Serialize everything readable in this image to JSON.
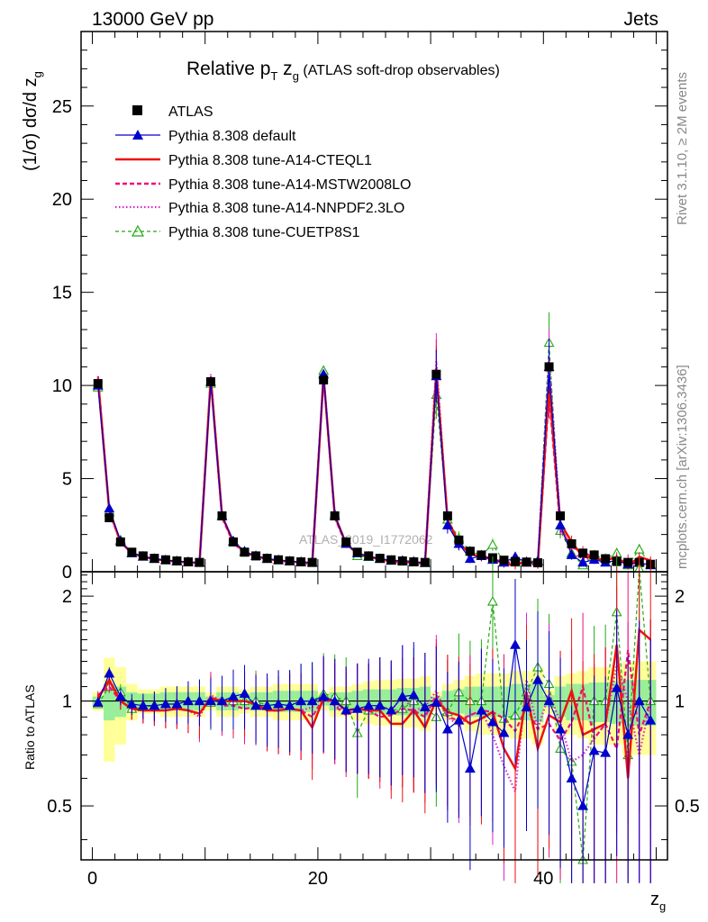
{
  "header": {
    "energy": "13000 GeV pp",
    "process": "Jets"
  },
  "side_text": {
    "rivet": "Rivet 3.1.10, ≥ 2M events",
    "site": "mcplots.cern.ch [arXiv:1306.3436]"
  },
  "watermark": "ATLAS_2019_I1772062",
  "title": {
    "pre": "Relative p",
    "sub1": "T",
    "mid": " z",
    "sub2": "g",
    "post": " (ATLAS soft-drop observables)"
  },
  "ylabel_main": {
    "pre": "(1/σ) dσ/d z",
    "sub": "g"
  },
  "ylabel_ratio": "Ratio to ATLAS",
  "xlabel": {
    "pre": "z",
    "sub": "g"
  },
  "colors": {
    "atlas": "#000000",
    "default": "#0000cc",
    "cteql1": "#ee1111",
    "mstw": "#ee1177",
    "nnpdf": "#dd22cc",
    "cuetp8s1": "#22aa11",
    "band_yellow": "#ffff99",
    "band_green": "#99ee99"
  },
  "chart_data": [
    {
      "type": "line",
      "panel": "main",
      "xlim": [
        -1,
        51
      ],
      "ylim": [
        0,
        29
      ],
      "xticks": [
        0,
        20,
        40
      ],
      "yticks": [
        0,
        5,
        10,
        15,
        20,
        25
      ],
      "x": [
        0.5,
        1.5,
        2.5,
        3.5,
        4.5,
        5.5,
        6.5,
        7.5,
        8.5,
        9.5,
        10.5,
        11.5,
        12.5,
        13.5,
        14.5,
        15.5,
        16.5,
        17.5,
        18.5,
        19.5,
        20.5,
        21.5,
        22.5,
        23.5,
        24.5,
        25.5,
        26.5,
        27.5,
        28.5,
        29.5,
        30.5,
        31.5,
        32.5,
        33.5,
        34.5,
        35.5,
        36.5,
        37.5,
        38.5,
        39.5,
        40.5,
        41.5,
        42.5,
        43.5,
        44.5,
        45.5,
        46.5,
        47.5,
        48.5,
        49.5
      ],
      "atlas": [
        10.1,
        2.9,
        1.6,
        1.05,
        0.85,
        0.72,
        0.64,
        0.58,
        0.53,
        0.5,
        10.2,
        3.0,
        1.6,
        1.05,
        0.85,
        0.72,
        0.64,
        0.58,
        0.53,
        0.5,
        10.3,
        3.0,
        1.6,
        1.05,
        0.85,
        0.72,
        0.64,
        0.58,
        0.53,
        0.5,
        10.6,
        3.0,
        1.7,
        1.1,
        0.9,
        0.75,
        0.62,
        0.55,
        0.52,
        0.48,
        11.0,
        3.0,
        1.5,
        1.0,
        0.9,
        0.7,
        0.55,
        0.5,
        0.5,
        0.4
      ],
      "series": [
        {
          "name": "Pythia 8.308 default",
          "values": [
            10.0,
            3.4,
            1.65,
            1.0,
            0.82,
            0.7,
            0.63,
            0.57,
            0.53,
            0.5,
            10.2,
            3.0,
            1.65,
            1.1,
            0.85,
            0.7,
            0.63,
            0.56,
            0.53,
            0.5,
            10.6,
            3.0,
            1.5,
            1.0,
            0.82,
            0.7,
            0.6,
            0.6,
            0.55,
            0.48,
            10.5,
            2.5,
            1.5,
            0.7,
            0.85,
            0.65,
            0.5,
            0.8,
            0.5,
            0.55,
            11.0,
            2.5,
            0.9,
            0.5,
            0.65,
            0.5,
            0.6,
            0.4,
            0.5,
            0.35
          ]
        },
        {
          "name": "Pythia 8.308 tune-A14-CTEQL1",
          "values": [
            10.3,
            3.3,
            1.6,
            1.0,
            0.8,
            0.68,
            0.6,
            0.55,
            0.5,
            0.46,
            10.4,
            3.0,
            1.6,
            1.05,
            0.83,
            0.68,
            0.6,
            0.55,
            0.5,
            0.42,
            10.5,
            3.0,
            1.5,
            1.0,
            0.8,
            0.68,
            0.55,
            0.5,
            0.5,
            0.42,
            10.7,
            2.8,
            1.55,
            0.95,
            0.8,
            0.7,
            0.45,
            0.35,
            0.55,
            0.35,
            10.0,
            2.6,
            1.6,
            0.8,
            0.75,
            0.6,
            0.8,
            0.3,
            0.8,
            0.6
          ]
        },
        {
          "name": "Pythia 8.308 tune-A14-MSTW2008LO",
          "values": [
            10.5,
            3.2,
            1.6,
            1.0,
            0.8,
            0.68,
            0.6,
            0.55,
            0.5,
            0.46,
            10.5,
            2.9,
            1.55,
            1.0,
            0.82,
            0.68,
            0.6,
            0.55,
            0.5,
            0.45,
            10.5,
            2.9,
            1.45,
            1.0,
            0.8,
            0.65,
            0.58,
            0.55,
            0.5,
            0.45,
            11.0,
            2.7,
            1.5,
            1.0,
            0.85,
            0.7,
            0.55,
            0.45,
            0.5,
            0.4,
            9.5,
            2.3,
            1.3,
            1.1,
            0.7,
            0.6,
            0.4,
            0.7,
            0.4,
            0.4
          ]
        },
        {
          "name": "Pythia 8.308 tune-A14-NNPDF2.3LO",
          "values": [
            10.4,
            3.3,
            1.6,
            1.0,
            0.8,
            0.68,
            0.6,
            0.55,
            0.5,
            0.45,
            10.6,
            3.0,
            1.6,
            1.05,
            0.83,
            0.68,
            0.6,
            0.55,
            0.5,
            0.48,
            10.6,
            2.9,
            1.5,
            1.0,
            0.8,
            0.7,
            0.6,
            0.6,
            0.5,
            0.48,
            11.3,
            2.7,
            1.45,
            1.0,
            0.85,
            0.6,
            0.4,
            0.3,
            0.6,
            0.4,
            11.5,
            2.6,
            1.0,
            0.7,
            0.7,
            0.6,
            0.7,
            0.5,
            0.35,
            0.4
          ]
        },
        {
          "name": "Pythia 8.308 tune-CUETP8S1",
          "values": [
            9.9,
            3.2,
            1.7,
            1.0,
            0.82,
            0.7,
            0.63,
            0.57,
            0.53,
            0.5,
            10.1,
            3.0,
            1.6,
            1.05,
            0.85,
            0.7,
            0.63,
            0.56,
            0.53,
            0.5,
            10.8,
            3.1,
            1.6,
            0.85,
            0.8,
            0.7,
            0.6,
            0.55,
            0.53,
            0.48,
            9.5,
            2.8,
            1.8,
            1.1,
            0.9,
            1.45,
            0.55,
            0.5,
            0.55,
            0.6,
            12.3,
            2.2,
            1.0,
            0.35,
            0.9,
            0.7,
            1.0,
            0.35,
            1.2,
            0.4
          ]
        }
      ],
      "legend": [
        "ATLAS",
        "Pythia 8.308 default",
        "Pythia 8.308 tune-A14-CTEQL1",
        "Pythia 8.308 tune-A14-MSTW2008LO",
        "Pythia 8.308 tune-A14-NNPDF2.3LO",
        "Pythia 8.308 tune-CUETP8S1"
      ],
      "legend_position": "top-left"
    },
    {
      "type": "line",
      "panel": "ratio",
      "xlim": [
        -1,
        51
      ],
      "ylim": [
        0.35,
        2.35
      ],
      "yscale": "log",
      "xticks": [
        0,
        20,
        40
      ],
      "yticks": [
        0.5,
        1,
        2
      ],
      "band_yellow_half": [
        0.06,
        0.33,
        0.25,
        0.12,
        0.08,
        0.08,
        0.1,
        0.1,
        0.1,
        0.1,
        0.06,
        0.1,
        0.1,
        0.08,
        0.1,
        0.1,
        0.12,
        0.12,
        0.12,
        0.12,
        0.06,
        0.1,
        0.1,
        0.12,
        0.14,
        0.15,
        0.15,
        0.16,
        0.16,
        0.18,
        0.06,
        0.12,
        0.15,
        0.18,
        0.2,
        0.2,
        0.2,
        0.22,
        0.22,
        0.25,
        0.08,
        0.18,
        0.2,
        0.22,
        0.25,
        0.25,
        0.25,
        0.3,
        0.3,
        0.3
      ],
      "band_green_half": [
        0.03,
        0.12,
        0.1,
        0.06,
        0.05,
        0.05,
        0.06,
        0.06,
        0.06,
        0.06,
        0.03,
        0.06,
        0.06,
        0.05,
        0.06,
        0.06,
        0.07,
        0.07,
        0.07,
        0.07,
        0.03,
        0.06,
        0.06,
        0.07,
        0.08,
        0.08,
        0.08,
        0.09,
        0.09,
        0.1,
        0.03,
        0.07,
        0.08,
        0.1,
        0.1,
        0.1,
        0.1,
        0.12,
        0.12,
        0.13,
        0.04,
        0.1,
        0.12,
        0.12,
        0.13,
        0.13,
        0.14,
        0.15,
        0.15,
        0.15
      ],
      "series": [
        {
          "name": "Pythia 8.308 default",
          "values": [
            0.99,
            1.2,
            1.03,
            0.98,
            0.97,
            0.97,
            0.98,
            0.98,
            1.0,
            1.0,
            1.0,
            1.0,
            1.03,
            1.05,
            0.97,
            0.97,
            0.98,
            0.97,
            1.0,
            1.0,
            1.03,
            1.0,
            0.94,
            0.95,
            0.97,
            0.97,
            0.94,
            1.03,
            1.04,
            0.96,
            0.99,
            0.83,
            0.88,
            0.64,
            0.94,
            0.87,
            0.81,
            1.45,
            0.96,
            1.15,
            1.0,
            0.83,
            0.6,
            0.5,
            0.72,
            0.71,
            1.09,
            0.8,
            1.0,
            0.88
          ]
        },
        {
          "name": "Pythia 8.308 tune-A14-CTEQL1",
          "values": [
            1.02,
            1.15,
            1.0,
            0.95,
            0.94,
            0.94,
            0.94,
            0.95,
            0.94,
            0.92,
            1.02,
            1.0,
            1.0,
            1.0,
            0.98,
            0.94,
            0.94,
            0.95,
            0.94,
            0.84,
            1.02,
            1.0,
            0.94,
            0.95,
            0.94,
            0.94,
            0.86,
            0.86,
            0.94,
            0.84,
            1.01,
            0.93,
            0.91,
            0.86,
            0.89,
            0.93,
            0.73,
            0.64,
            1.06,
            0.73,
            0.91,
            0.87,
            1.07,
            0.8,
            0.83,
            0.86,
            1.45,
            0.6,
            1.6,
            1.5
          ]
        },
        {
          "name": "Pythia 8.308 tune-A14-MSTW2008LO",
          "values": [
            1.04,
            1.1,
            1.0,
            0.95,
            0.94,
            0.94,
            0.94,
            0.95,
            0.94,
            0.92,
            1.03,
            0.97,
            0.97,
            0.95,
            0.96,
            0.94,
            0.94,
            0.95,
            0.94,
            0.9,
            1.02,
            0.97,
            0.91,
            0.95,
            0.94,
            0.9,
            0.91,
            0.95,
            0.94,
            0.9,
            1.04,
            0.9,
            0.88,
            0.91,
            0.94,
            0.93,
            0.89,
            0.82,
            0.96,
            0.83,
            0.86,
            0.77,
            0.87,
            1.1,
            0.78,
            0.86,
            0.73,
            1.4,
            0.8,
            1.0
          ]
        },
        {
          "name": "Pythia 8.308 tune-A14-NNPDF2.3LO",
          "values": [
            1.03,
            1.14,
            1.0,
            0.95,
            0.94,
            0.94,
            0.94,
            0.95,
            0.94,
            0.9,
            1.04,
            1.0,
            1.0,
            1.0,
            0.98,
            0.94,
            0.94,
            0.95,
            0.94,
            0.96,
            1.03,
            0.97,
            0.94,
            0.95,
            0.94,
            0.97,
            0.94,
            1.03,
            0.94,
            0.96,
            1.07,
            0.9,
            0.85,
            0.91,
            0.94,
            0.8,
            0.65,
            0.55,
            1.15,
            0.83,
            1.05,
            0.87,
            0.67,
            0.7,
            0.78,
            0.86,
            1.27,
            1.0,
            0.7,
            1.0
          ]
        },
        {
          "name": "Pythia 8.308 tune-CUETP8S1",
          "values": [
            0.98,
            1.1,
            1.06,
            0.95,
            0.96,
            0.97,
            0.98,
            0.98,
            1.0,
            1.0,
            0.99,
            1.0,
            1.0,
            1.0,
            1.0,
            0.97,
            0.98,
            0.97,
            1.0,
            1.0,
            1.05,
            1.03,
            1.0,
            0.81,
            0.94,
            0.97,
            0.94,
            0.95,
            1.0,
            0.96,
            0.9,
            0.93,
            1.06,
            1.0,
            1.0,
            1.93,
            0.89,
            0.91,
            1.06,
            1.25,
            1.12,
            0.73,
            0.67,
            0.35,
            1.0,
            1.0,
            1.8,
            0.7,
            2.4,
            1.0
          ]
        }
      ]
    }
  ]
}
